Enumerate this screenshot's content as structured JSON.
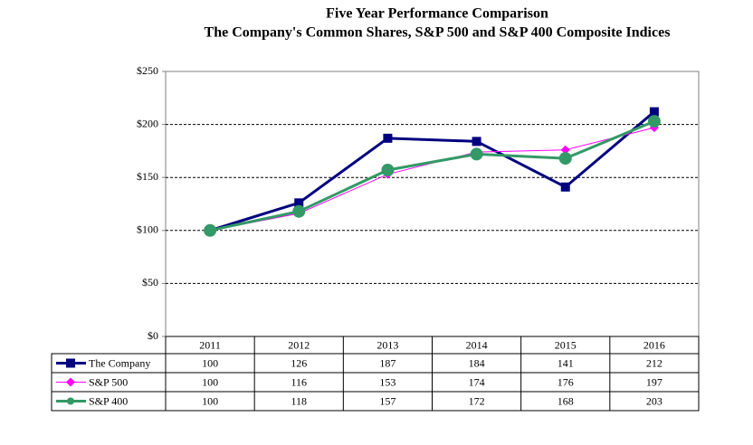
{
  "chart_data": {
    "type": "line",
    "title": "Five Year Performance Comparison",
    "subtitle": "The Company's Common Shares, S&P 500 and S&P 400 Composite Indices",
    "categories": [
      "2011",
      "2012",
      "2013",
      "2014",
      "2015",
      "2016"
    ],
    "series": [
      {
        "name": "The Company",
        "color": "#000080",
        "marker": "square",
        "values": [
          100,
          126,
          187,
          184,
          141,
          212
        ]
      },
      {
        "name": "S&P 500",
        "color": "#ff00ff",
        "marker": "diamond",
        "values": [
          100,
          116,
          153,
          174,
          176,
          197
        ]
      },
      {
        "name": "S&P 400",
        "color": "#339966",
        "marker": "circle",
        "values": [
          100,
          118,
          157,
          172,
          168,
          203
        ]
      }
    ],
    "ylim": [
      0,
      250
    ],
    "yticks": [
      {
        "value": 0,
        "label": "$0"
      },
      {
        "value": 50,
        "label": "$50"
      },
      {
        "value": 100,
        "label": "$100"
      },
      {
        "value": 150,
        "label": "$150"
      },
      {
        "value": 200,
        "label": "$200"
      },
      {
        "value": 250,
        "label": "$250"
      }
    ],
    "grid": true
  }
}
